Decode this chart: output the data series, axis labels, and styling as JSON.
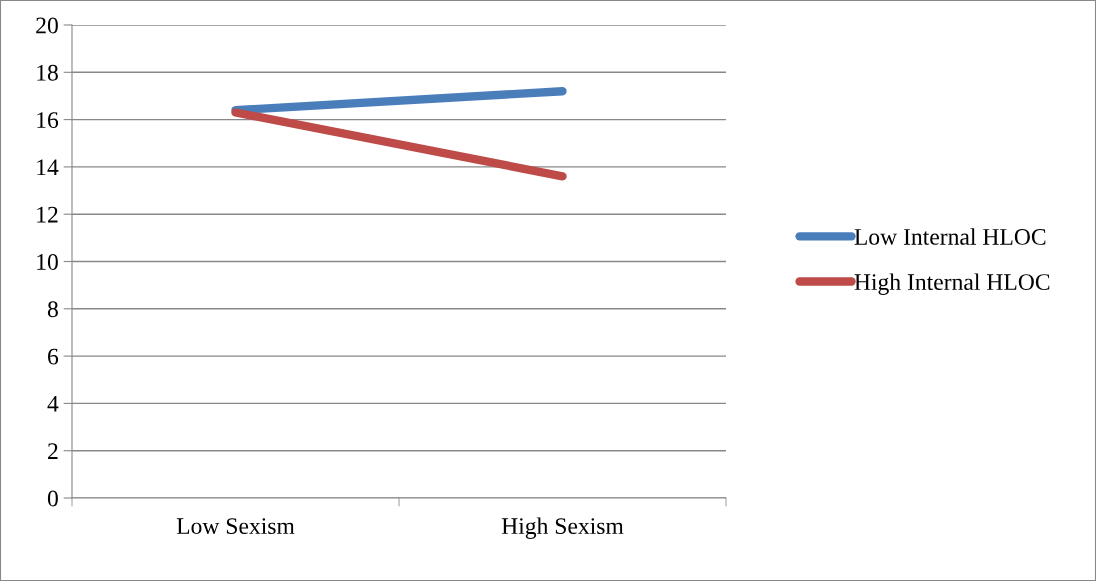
{
  "chart_data": {
    "type": "line",
    "categories": [
      "Low Sexism",
      "High Sexism"
    ],
    "series": [
      {
        "name": "Low Internal HLOC",
        "color": "#4a7ebb",
        "values": [
          16.4,
          17.2
        ]
      },
      {
        "name": "High Internal HLOC",
        "color": "#be4b48",
        "values": [
          16.3,
          13.6
        ]
      }
    ],
    "ylim": [
      0,
      20
    ],
    "yticks": [
      0,
      2,
      4,
      6,
      8,
      10,
      12,
      14,
      16,
      18,
      20
    ],
    "grid": "y",
    "legend": "right",
    "marker": "none",
    "line_style": "solid"
  }
}
